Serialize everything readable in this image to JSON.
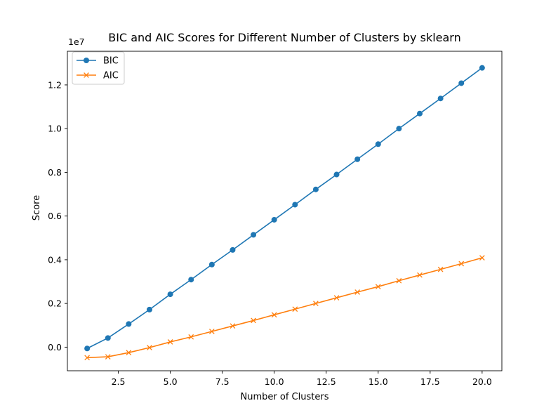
{
  "chart_data": {
    "type": "line",
    "title": "BIC and AIC Scores for Different Number of Clusters by sklearn",
    "xlabel": "Number of Clusters",
    "ylabel": "Score",
    "y_scale_label": "1e7",
    "xlim": [
      0.05,
      20.95
    ],
    "ylim": [
      -1.08,
      13.54
    ],
    "xticks": [
      2.5,
      5.0,
      7.5,
      10.0,
      12.5,
      15.0,
      17.5,
      20.0
    ],
    "xtick_labels": [
      "2.5",
      "5.0",
      "7.5",
      "10.0",
      "12.5",
      "15.0",
      "17.5",
      "20.0"
    ],
    "yticks": [
      0.0,
      2.0,
      4.0,
      6.0,
      8.0,
      10.0,
      12.0
    ],
    "ytick_labels": [
      "0.0",
      "0.2",
      "0.4",
      "0.6",
      "0.8",
      "1.0",
      "1.2"
    ],
    "grid": false,
    "legend_position": "top-left",
    "x": [
      1,
      2,
      3,
      4,
      5,
      6,
      7,
      8,
      9,
      10,
      11,
      12,
      13,
      14,
      15,
      16,
      17,
      18,
      19,
      20
    ],
    "series": [
      {
        "name": "BIC",
        "color": "#1f77b4",
        "marker": "circle",
        "values": [
          -0.06,
          0.42,
          1.06,
          1.72,
          2.42,
          3.09,
          3.78,
          4.45,
          5.14,
          5.83,
          6.52,
          7.22,
          7.9,
          8.6,
          9.29,
          10.0,
          10.69,
          11.38,
          12.08,
          12.78
        ]
      },
      {
        "name": "AIC",
        "color": "#ff7f0e",
        "marker": "x",
        "values": [
          -0.48,
          -0.44,
          -0.25,
          -0.02,
          0.24,
          0.47,
          0.72,
          0.97,
          1.22,
          1.48,
          1.74,
          2.0,
          2.26,
          2.52,
          2.77,
          3.04,
          3.3,
          3.56,
          3.82,
          4.09
        ]
      }
    ]
  }
}
